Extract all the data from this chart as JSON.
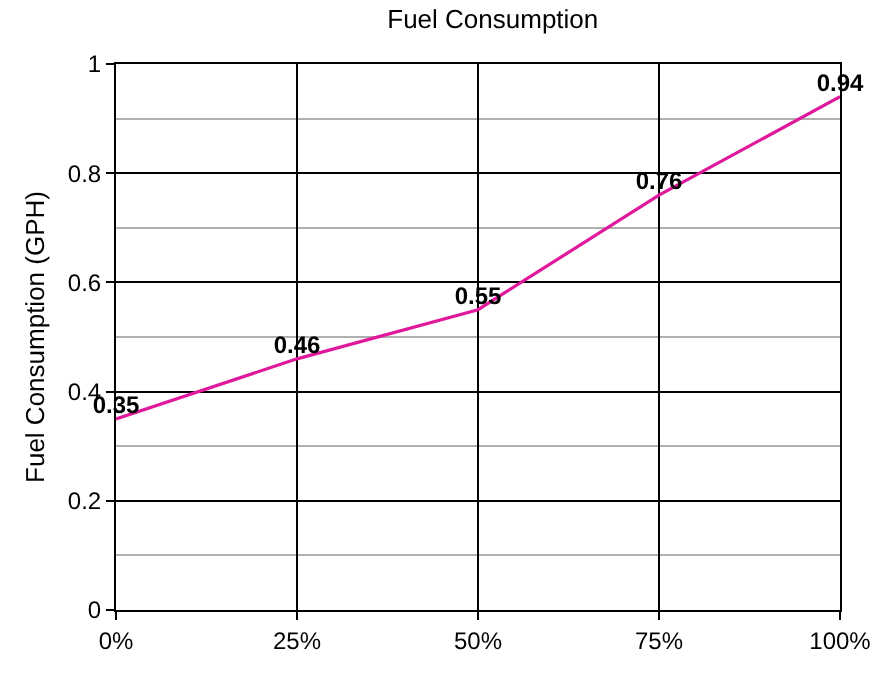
{
  "chart_data": {
    "type": "line",
    "title": "Fuel Consumption",
    "ylabel": "Fuel Consumption (GPH)",
    "x": [
      0,
      25,
      50,
      75,
      100
    ],
    "series": [
      {
        "color": "#e0189c",
        "values": [
          0.35,
          0.46,
          0.55,
          0.76,
          0.94
        ]
      }
    ],
    "xlim": [
      0,
      100
    ],
    "xticks": [
      {
        "value": 0,
        "label": "0%"
      },
      {
        "value": 25,
        "label": "25%"
      },
      {
        "value": 50,
        "label": "50%"
      },
      {
        "value": 75,
        "label": "75%"
      },
      {
        "value": 100,
        "label": "100%"
      }
    ],
    "ylim": [
      0,
      1
    ],
    "yticks": [
      0,
      0.2,
      0.4,
      0.6,
      0.8,
      1
    ],
    "grid": true,
    "marker": "none",
    "line_style": "solid",
    "data_labels": true
  }
}
